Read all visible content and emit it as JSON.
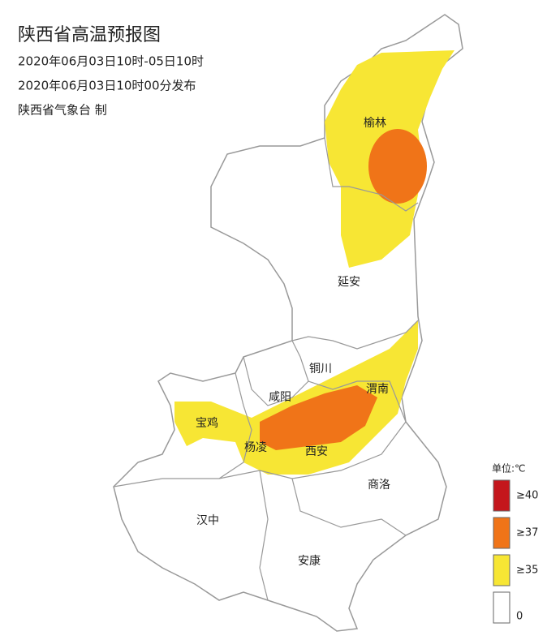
{
  "header": {
    "title": "陕西省高温预报图",
    "lines": [
      "2020年06月03日10时-05日10时",
      "2020年06月03日10时00分发布",
      "陕西省气象台 制"
    ]
  },
  "cities": [
    "榆林",
    "延安",
    "铜川",
    "咸阳",
    "渭南",
    "宝鸡",
    "杨凌",
    "西安",
    "商洛",
    "汉中",
    "安康"
  ],
  "legend": {
    "unit": "单位:℃",
    "items": [
      {
        "label": "≥40",
        "color": "#c4161c"
      },
      {
        "label": "≥37",
        "color": "#f07418"
      },
      {
        "label": "≥35",
        "color": "#f7e634"
      },
      {
        "label": "0",
        "color": "#ffffff"
      }
    ]
  }
}
